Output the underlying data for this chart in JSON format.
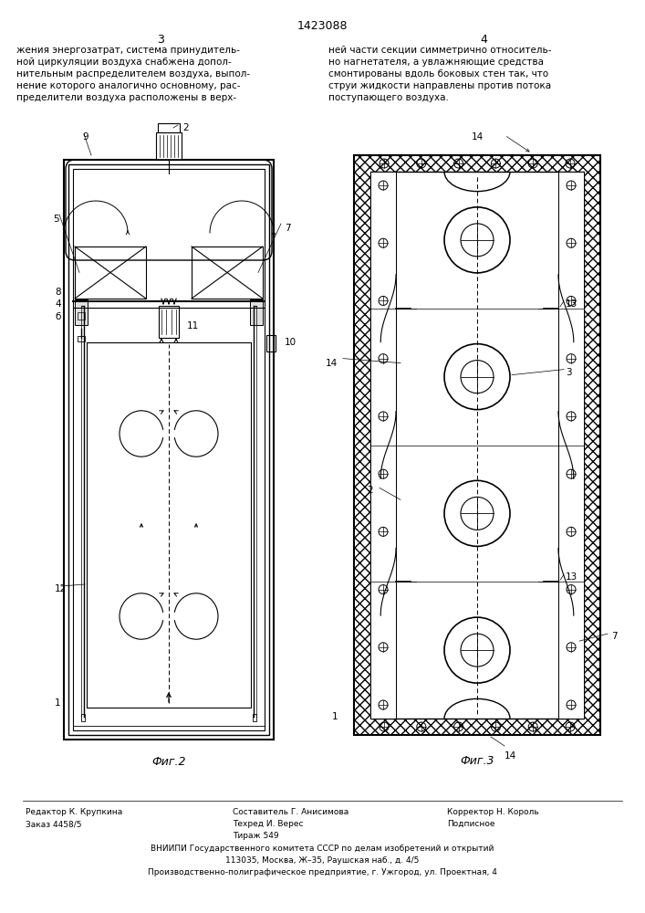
{
  "page_width": 7.07,
  "page_height": 10.0,
  "background": "#ffffff",
  "patent_number": "1423088",
  "text_left": "жения энергозатрат, система принудитель-\nной циркуляции воздуха снабжена допол-\nнительным распределителем воздуха, выпол-\nнение которого аналогично основному, рас-\nпределители воздуха расположены в верх-",
  "text_right": "ней части секции симметрично относитель-\nно нагнетателя, а увлажняющие средства\nсмонтированы вдоль боковых стен так, что\nструи жидкости направлены против потока\nпоступающего воздуха.",
  "fig2_label": "Фиг.2",
  "fig3_label": "Фиг.3",
  "footer_left": "Редактор К. Крупкина",
  "footer_order": "Заказ 4458/5",
  "footer_mid1": "Составитель Г. Анисимова",
  "footer_tech": "Техред И. Верес",
  "footer_corrector": "Корректор Н. Король",
  "footer_tirazh": "Тираж 549",
  "footer_podpis": "Подписное",
  "footer_vniiipi": "ВНИИПИ Государственного комитета СССР по делам изобретений и открытий",
  "footer_address": "113035, Москва, Ж–35, Раушская наб., д. 4/5",
  "footer_factory": "Производственно-полиграфическое предприятие, г. Ужгород, ул. Проектная, 4"
}
